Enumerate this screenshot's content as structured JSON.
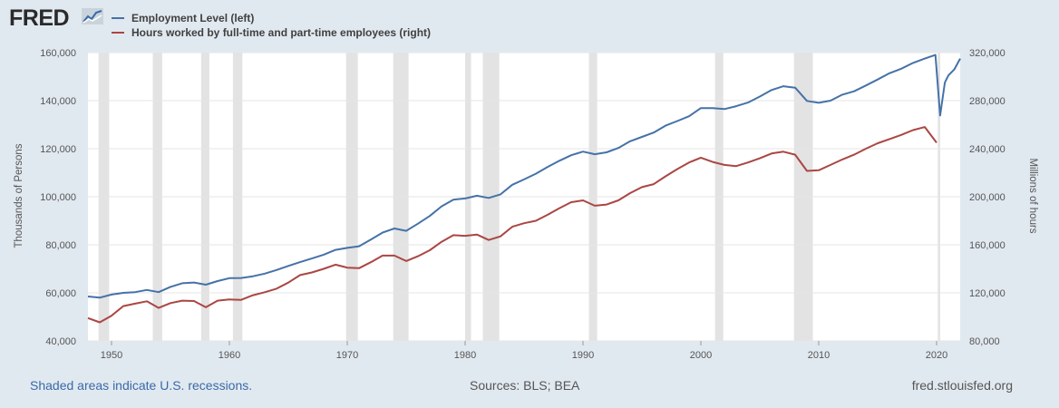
{
  "brand": {
    "name": "FRED",
    "icon": "line-graph-icon"
  },
  "chart_data": {
    "type": "line",
    "x_axis": {
      "ticks": [
        1950,
        1960,
        1970,
        1980,
        1990,
        2000,
        2010,
        2020
      ],
      "range": [
        1948.0,
        2022.0
      ]
    },
    "y_left": {
      "label": "Thousands of Persons",
      "range": [
        40000,
        160000
      ],
      "ticks": [
        "40,000",
        "60,000",
        "80,000",
        "100,000",
        "120,000",
        "140,000",
        "160,000"
      ]
    },
    "y_right": {
      "label": "Millions of hours",
      "range": [
        80000,
        320000
      ],
      "ticks": [
        "80,000",
        "120,000",
        "160,000",
        "200,000",
        "240,000",
        "280,000",
        "320,000"
      ]
    },
    "grid": true,
    "legend_position": "top-left",
    "recessions": [
      [
        1948.9,
        1949.8
      ],
      [
        1953.5,
        1954.3
      ],
      [
        1957.6,
        1958.3
      ],
      [
        1960.3,
        1961.1
      ],
      [
        1969.9,
        1970.9
      ],
      [
        1973.9,
        1975.2
      ],
      [
        1980.0,
        1980.5
      ],
      [
        1981.5,
        1982.9
      ],
      [
        1990.5,
        1991.2
      ],
      [
        2001.2,
        2001.9
      ],
      [
        2007.9,
        2009.5
      ],
      [
        2020.1,
        2020.3
      ]
    ],
    "series": [
      {
        "name": "Employment Level (left)",
        "axis": "left",
        "color": "#4572a7",
        "x": [
          1948,
          1949,
          1950,
          1951,
          1952,
          1953,
          1954,
          1955,
          1956,
          1957,
          1958,
          1959,
          1960,
          1961,
          1962,
          1963,
          1964,
          1965,
          1966,
          1967,
          1968,
          1969,
          1970,
          1971,
          1972,
          1973,
          1974,
          1975,
          1976,
          1977,
          1978,
          1979,
          1980,
          1981,
          1982,
          1983,
          1984,
          1985,
          1986,
          1987,
          1988,
          1989,
          1990,
          1991,
          1992,
          1993,
          1994,
          1995,
          1996,
          1997,
          1998,
          1999,
          2000,
          2001,
          2002,
          2003,
          2004,
          2005,
          2006,
          2007,
          2008,
          2009,
          2010,
          2011,
          2012,
          2013,
          2014,
          2015,
          2016,
          2017,
          2018,
          2019,
          2019.9,
          2020.3,
          2020.7,
          2021,
          2021.5,
          2022
        ],
        "values": [
          58500,
          58000,
          59300,
          60000,
          60300,
          61200,
          60300,
          62500,
          64000,
          64300,
          63400,
          64900,
          66100,
          66200,
          66900,
          68000,
          69500,
          71200,
          72800,
          74300,
          75900,
          77900,
          78700,
          79400,
          82200,
          85100,
          86800,
          85800,
          88800,
          92000,
          96000,
          98800,
          99300,
          100400,
          99500,
          101000,
          105000,
          107200,
          109600,
          112400,
          115000,
          117300,
          118800,
          117700,
          118500,
          120300,
          123100,
          124900,
          126700,
          129600,
          131500,
          133500,
          136900,
          136900,
          136500,
          137700,
          139200,
          141700,
          144400,
          146000,
          145400,
          139900,
          139100,
          140000,
          142500,
          143900,
          146300,
          148800,
          151400,
          153300,
          155700,
          157500,
          159000,
          133800,
          147500,
          150500,
          153000,
          157500
        ]
      },
      {
        "name": "Hours worked by full-time and part-time employees (right)",
        "axis": "right",
        "color": "#aa4643",
        "x": [
          1948,
          1949,
          1950,
          1951,
          1952,
          1953,
          1954,
          1955,
          1956,
          1957,
          1958,
          1959,
          1960,
          1961,
          1962,
          1963,
          1964,
          1965,
          1966,
          1967,
          1968,
          1969,
          1970,
          1971,
          1972,
          1973,
          1974,
          1975,
          1976,
          1977,
          1978,
          1979,
          1980,
          1981,
          1982,
          1983,
          1984,
          1985,
          1986,
          1987,
          1988,
          1989,
          1990,
          1991,
          1992,
          1993,
          1994,
          1995,
          1996,
          1997,
          1998,
          1999,
          2000,
          2001,
          2002,
          2003,
          2004,
          2005,
          2006,
          2007,
          2008,
          2009,
          2010,
          2011,
          2012,
          2013,
          2014,
          2015,
          2016,
          2017,
          2018,
          2019,
          2020
        ],
        "values": [
          99000,
          95500,
          101000,
          109000,
          111000,
          113000,
          107500,
          111500,
          113500,
          113200,
          108000,
          113500,
          114500,
          114200,
          118000,
          120500,
          123500,
          128500,
          134800,
          137000,
          140000,
          143500,
          141000,
          140500,
          145500,
          151000,
          151000,
          146500,
          150500,
          155500,
          162500,
          168000,
          167500,
          168500,
          164000,
          167000,
          175000,
          178000,
          180000,
          185000,
          190500,
          195500,
          197000,
          192500,
          193500,
          197000,
          203000,
          208000,
          210500,
          217000,
          223000,
          228500,
          232500,
          229000,
          226500,
          225500,
          228500,
          232000,
          236000,
          237500,
          235000,
          221500,
          222000,
          226500,
          231000,
          235000,
          240000,
          244500,
          248000,
          251500,
          255500,
          258000,
          245000
        ]
      }
    ]
  },
  "footer": {
    "note": "Shaded areas indicate U.S. recessions.",
    "sources": "Sources: BLS; BEA",
    "site": "fred.stlouisfed.org"
  }
}
